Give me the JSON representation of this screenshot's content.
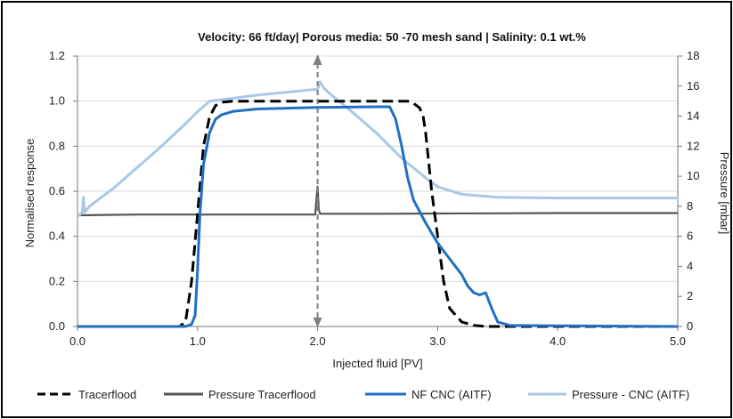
{
  "chart_data": {
    "type": "line",
    "title": "Velocity: 66 ft/day| Porous media: 50 -70 mesh sand | Salinity: 0.1 wt.%",
    "xlabel": "Injected fluid [PV]",
    "ylabel_left": "Normalised response",
    "ylabel_right": "Pressure [mbar]",
    "xlim": [
      0.0,
      5.0
    ],
    "ylim_left": [
      0.0,
      1.2
    ],
    "ylim_right": [
      0,
      18
    ],
    "x_ticks": [
      "0.0",
      "1.0",
      "2.0",
      "3.0",
      "4.0",
      "5.0"
    ],
    "y_left_ticks": [
      "0.0",
      "0.2",
      "0.4",
      "0.6",
      "0.8",
      "1.0",
      "1.2"
    ],
    "y_right_ticks": [
      "0",
      "2",
      "4",
      "6",
      "8",
      "10",
      "12",
      "14",
      "16",
      "18"
    ],
    "grid": "horizontal",
    "legend_position": "bottom",
    "vertical_marker_x": 2.0,
    "series": [
      {
        "name": "Tracerflood",
        "axis": "left",
        "color": "#000000",
        "style": "dashed",
        "x": [
          0.0,
          0.85,
          0.9,
          0.95,
          1.0,
          1.05,
          1.1,
          1.15,
          1.2,
          1.3,
          1.5,
          2.0,
          2.5,
          2.75,
          2.8,
          2.85,
          2.88,
          2.9,
          2.95,
          3.0,
          3.05,
          3.1,
          3.2,
          3.3,
          3.4,
          3.5,
          5.0
        ],
        "y": [
          0.0,
          0.0,
          0.02,
          0.2,
          0.5,
          0.8,
          0.93,
          0.98,
          0.995,
          1.0,
          1.0,
          1.0,
          1.0,
          1.0,
          0.99,
          0.97,
          0.93,
          0.86,
          0.6,
          0.4,
          0.2,
          0.08,
          0.02,
          0.005,
          0.0,
          0.0,
          0.0
        ]
      },
      {
        "name": "Pressure Tracerflood",
        "axis": "right",
        "color": "#555555",
        "style": "solid",
        "x": [
          0.0,
          0.5,
          1.0,
          1.5,
          1.98,
          1.99,
          2.0,
          2.01,
          2.02,
          2.5,
          3.0,
          3.5,
          4.0,
          4.5,
          5.0
        ],
        "y": [
          7.4,
          7.45,
          7.45,
          7.45,
          7.45,
          8.5,
          9.3,
          7.8,
          7.5,
          7.5,
          7.52,
          7.53,
          7.55,
          7.55,
          7.55
        ]
      },
      {
        "name": "NF CNC (AITF)",
        "axis": "left",
        "color": "#1f6fc4",
        "style": "solid",
        "x": [
          0.0,
          0.9,
          0.95,
          0.98,
          1.0,
          1.02,
          1.05,
          1.1,
          1.15,
          1.2,
          1.3,
          1.5,
          2.0,
          2.5,
          2.6,
          2.65,
          2.7,
          2.75,
          2.8,
          2.9,
          3.0,
          3.1,
          3.2,
          3.25,
          3.3,
          3.35,
          3.4,
          3.45,
          3.5,
          3.6,
          4.0,
          5.0
        ],
        "y": [
          0.0,
          0.0,
          0.01,
          0.05,
          0.25,
          0.5,
          0.72,
          0.86,
          0.92,
          0.94,
          0.955,
          0.965,
          0.972,
          0.975,
          0.975,
          0.92,
          0.8,
          0.66,
          0.56,
          0.46,
          0.37,
          0.3,
          0.23,
          0.18,
          0.15,
          0.14,
          0.15,
          0.08,
          0.02,
          0.005,
          0.003,
          0.0
        ]
      },
      {
        "name": "Pressure - CNC (AITF)",
        "axis": "right",
        "color": "#a9c8e6",
        "style": "solid",
        "x": [
          0.0,
          0.04,
          0.05,
          0.06,
          0.1,
          0.3,
          0.5,
          0.7,
          0.9,
          1.0,
          1.1,
          1.2,
          1.5,
          2.0,
          2.02,
          2.05,
          2.1,
          2.3,
          2.5,
          2.7,
          2.9,
          3.0,
          3.2,
          3.5,
          4.0,
          4.5,
          5.0
        ],
        "y": [
          7.3,
          7.6,
          8.6,
          7.6,
          8.0,
          9.2,
          10.6,
          12.0,
          13.5,
          14.3,
          15.0,
          15.1,
          15.4,
          15.8,
          16.3,
          15.9,
          15.5,
          14.2,
          12.8,
          11.2,
          9.9,
          9.3,
          8.8,
          8.6,
          8.55,
          8.55,
          8.55
        ]
      }
    ]
  }
}
